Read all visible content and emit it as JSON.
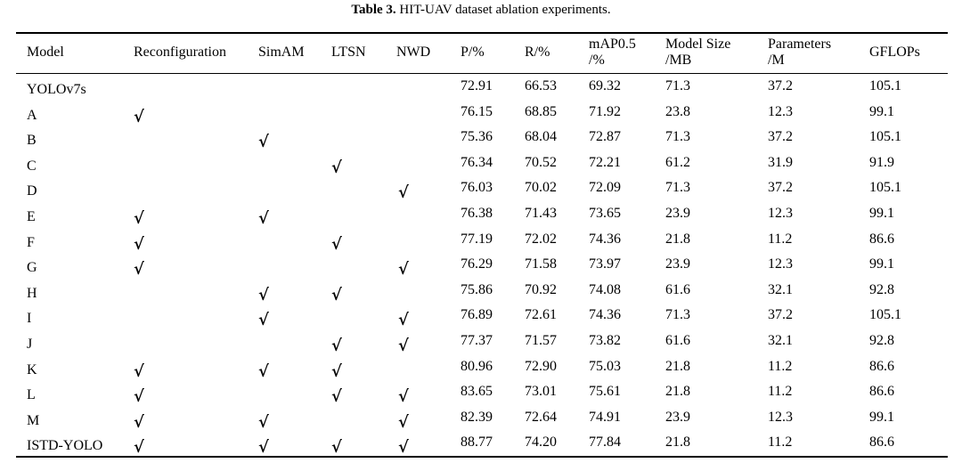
{
  "caption": {
    "label": "Table 3.",
    "text": "HIT-UAV dataset ablation experiments."
  },
  "headers": [
    {
      "key": "model",
      "line1": "Model",
      "line2": ""
    },
    {
      "key": "reconf",
      "line1": "Reconfiguration",
      "line2": ""
    },
    {
      "key": "simam",
      "line1": "SimAM",
      "line2": ""
    },
    {
      "key": "ltsn",
      "line1": "LTSN",
      "line2": ""
    },
    {
      "key": "nwd",
      "line1": "NWD",
      "line2": ""
    },
    {
      "key": "p",
      "line1": "P/%",
      "line2": ""
    },
    {
      "key": "r",
      "line1": "R/%",
      "line2": ""
    },
    {
      "key": "map",
      "line1": "mAP0.5",
      "line2": "/%"
    },
    {
      "key": "size",
      "line1": "Model Size",
      "line2": "/MB"
    },
    {
      "key": "params",
      "line1": "Parameters",
      "line2": "/M"
    },
    {
      "key": "gflops",
      "line1": "GFLOPs",
      "line2": ""
    }
  ],
  "check_mark": "√",
  "rows": [
    {
      "model": "YOLOv7s",
      "reconf": "",
      "simam": "",
      "ltsn": "",
      "nwd": "",
      "p": "72.91",
      "r": "66.53",
      "map": "69.32",
      "size": "71.3",
      "params": "37.2",
      "gflops": "105.1"
    },
    {
      "model": "A",
      "reconf": "√",
      "simam": "",
      "ltsn": "",
      "nwd": "",
      "p": "76.15",
      "r": "68.85",
      "map": "71.92",
      "size": "23.8",
      "params": "12.3",
      "gflops": "99.1"
    },
    {
      "model": "B",
      "reconf": "",
      "simam": "√",
      "ltsn": "",
      "nwd": "",
      "p": "75.36",
      "r": "68.04",
      "map": "72.87",
      "size": "71.3",
      "params": "37.2",
      "gflops": "105.1"
    },
    {
      "model": "C",
      "reconf": "",
      "simam": "",
      "ltsn": "√",
      "nwd": "",
      "p": "76.34",
      "r": "70.52",
      "map": "72.21",
      "size": "61.2",
      "params": "31.9",
      "gflops": "91.9"
    },
    {
      "model": "D",
      "reconf": "",
      "simam": "",
      "ltsn": "",
      "nwd": "√",
      "p": "76.03",
      "r": "70.02",
      "map": "72.09",
      "size": "71.3",
      "params": "37.2",
      "gflops": "105.1"
    },
    {
      "model": "E",
      "reconf": "√",
      "simam": "√",
      "ltsn": "",
      "nwd": "",
      "p": "76.38",
      "r": "71.43",
      "map": "73.65",
      "size": "23.9",
      "params": "12.3",
      "gflops": "99.1"
    },
    {
      "model": "F",
      "reconf": "√",
      "simam": "",
      "ltsn": "√",
      "nwd": "",
      "p": "77.19",
      "r": "72.02",
      "map": "74.36",
      "size": "21.8",
      "params": "11.2",
      "gflops": "86.6"
    },
    {
      "model": "G",
      "reconf": "√",
      "simam": "",
      "ltsn": "",
      "nwd": "√",
      "p": "76.29",
      "r": "71.58",
      "map": "73.97",
      "size": "23.9",
      "params": "12.3",
      "gflops": "99.1"
    },
    {
      "model": "H",
      "reconf": "",
      "simam": "√",
      "ltsn": "√",
      "nwd": "",
      "p": "75.86",
      "r": "70.92",
      "map": "74.08",
      "size": "61.6",
      "params": "32.1",
      "gflops": "92.8"
    },
    {
      "model": "I",
      "reconf": "",
      "simam": "√",
      "ltsn": "",
      "nwd": "√",
      "p": "76.89",
      "r": "72.61",
      "map": "74.36",
      "size": "71.3",
      "params": "37.2",
      "gflops": "105.1"
    },
    {
      "model": "J",
      "reconf": "",
      "simam": "",
      "ltsn": "√",
      "nwd": "√",
      "p": "77.37",
      "r": "71.57",
      "map": "73.82",
      "size": "61.6",
      "params": "32.1",
      "gflops": "92.8"
    },
    {
      "model": "K",
      "reconf": "√",
      "simam": "√",
      "ltsn": "√",
      "nwd": "",
      "p": "80.96",
      "r": "72.90",
      "map": "75.03",
      "size": "21.8",
      "params": "11.2",
      "gflops": "86.6"
    },
    {
      "model": "L",
      "reconf": "√",
      "simam": "",
      "ltsn": "√",
      "nwd": "√",
      "p": "83.65",
      "r": "73.01",
      "map": "75.61",
      "size": "21.8",
      "params": "11.2",
      "gflops": "86.6"
    },
    {
      "model": "M",
      "reconf": "√",
      "simam": "√",
      "ltsn": "",
      "nwd": "√",
      "p": "82.39",
      "r": "72.64",
      "map": "74.91",
      "size": "23.9",
      "params": "12.3",
      "gflops": "99.1"
    },
    {
      "model": "ISTD-YOLO",
      "reconf": "√",
      "simam": "√",
      "ltsn": "√",
      "nwd": "√",
      "p": "88.77",
      "r": "74.20",
      "map": "77.84",
      "size": "21.8",
      "params": "11.2",
      "gflops": "86.6"
    }
  ]
}
